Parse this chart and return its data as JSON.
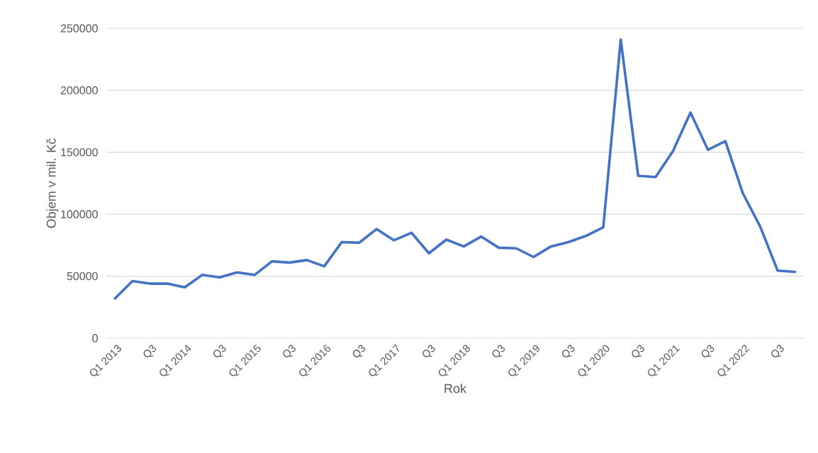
{
  "chart_data": {
    "type": "line",
    "xlabel": "Rok",
    "ylabel": "Objem v mil. Kč",
    "categories": [
      "Q1 2013",
      null,
      "Q3",
      null,
      "Q1 2014",
      null,
      "Q3",
      null,
      "Q1 2015",
      null,
      "Q3",
      null,
      "Q1 2016",
      null,
      "Q3",
      null,
      "Q1 2017",
      null,
      "Q3",
      null,
      "Q1 2018",
      null,
      "Q3",
      null,
      "Q1 2019",
      null,
      "Q3",
      null,
      "Q1 2020",
      null,
      "Q3",
      null,
      "Q1 2021",
      null,
      "Q3",
      null,
      "Q1 2022",
      null,
      "Q3",
      null
    ],
    "values": [
      32000,
      46000,
      44000,
      44000,
      41000,
      51000,
      49000,
      53000,
      51000,
      62000,
      61000,
      63000,
      58000,
      77500,
      77000,
      88000,
      79000,
      85000,
      68500,
      79500,
      74000,
      82000,
      73000,
      72500,
      65500,
      74000,
      77500,
      82500,
      89500,
      241000,
      131000,
      130000,
      151000,
      182000,
      152000,
      159000,
      117000,
      90000,
      54500,
      53500
    ],
    "color": "#4472c4",
    "ylim": [
      0,
      250000
    ],
    "yticks": [
      0,
      50000,
      100000,
      150000,
      200000,
      250000
    ],
    "grid": "y",
    "marker": "none",
    "line_style": "solid"
  }
}
